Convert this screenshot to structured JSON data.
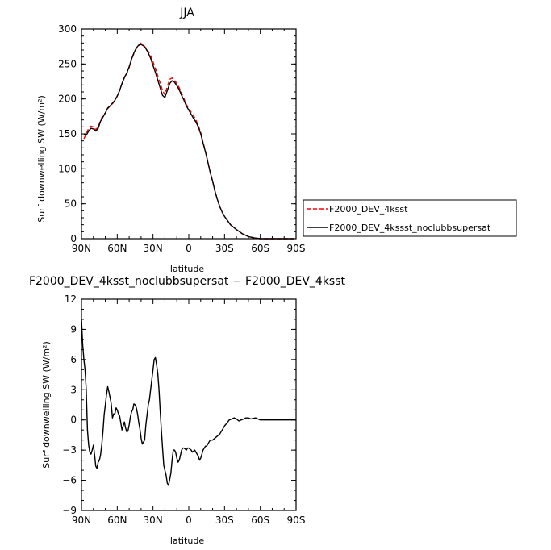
{
  "chart_data": [
    {
      "type": "line",
      "title": "JJA",
      "xlabel": "latitude",
      "ylabel": "Surf downwelling SW (W/m²)",
      "xlim": [
        90,
        -90
      ],
      "ylim": [
        0,
        300
      ],
      "x_ticks": [
        90,
        60,
        30,
        0,
        -30,
        -60,
        -90
      ],
      "x_tick_labels": [
        "90N",
        "60N",
        "30N",
        "0",
        "30S",
        "60S",
        "90S"
      ],
      "y_ticks": [
        0,
        50,
        100,
        150,
        200,
        250,
        300
      ],
      "y_tick_labels": [
        "0",
        "50",
        "100",
        "150",
        "200",
        "250",
        "300"
      ],
      "grid": false,
      "legend_position": "right",
      "series": [
        {
          "name": "F2000_DEV_4ksst",
          "color": "#ff0000",
          "dash": "dashed",
          "x": [
            88,
            86,
            84,
            82,
            80,
            78,
            76,
            74,
            72,
            70,
            68,
            66,
            64,
            62,
            60,
            58,
            56,
            54,
            52,
            50,
            48,
            46,
            44,
            42,
            40,
            38,
            36,
            34,
            32,
            30,
            28,
            26,
            24,
            22,
            20,
            18,
            16,
            14,
            12,
            10,
            8,
            6,
            4,
            2,
            0,
            -2,
            -4,
            -6,
            -8,
            -10,
            -12,
            -14,
            -16,
            -18,
            -20,
            -22,
            -24,
            -26,
            -28,
            -30,
            -35,
            -40,
            -45,
            -50,
            -55,
            -60,
            -65,
            -70,
            -75,
            -80,
            -85,
            -88
          ],
          "y": [
            143,
            150,
            158,
            161,
            160,
            156,
            160,
            170,
            176,
            180,
            186,
            190,
            193,
            198,
            204,
            212,
            222,
            230,
            236,
            245,
            256,
            265,
            272,
            276,
            280,
            277,
            273,
            268,
            262,
            253,
            244,
            233,
            223,
            212,
            206,
            218,
            228,
            230,
            227,
            222,
            216,
            208,
            200,
            192,
            186,
            181,
            176,
            170,
            162,
            152,
            138,
            125,
            110,
            95,
            82,
            68,
            56,
            46,
            38,
            32,
            20,
            13,
            7,
            3,
            1,
            0,
            0,
            0,
            0,
            0,
            0,
            0
          ]
        },
        {
          "name": "F2000_DEV_4kssst_noclubbsupersat",
          "color": "#000000",
          "dash": "solid",
          "x": [
            88,
            86,
            84,
            82,
            80,
            78,
            76,
            74,
            72,
            70,
            68,
            66,
            64,
            62,
            60,
            58,
            56,
            54,
            52,
            50,
            48,
            46,
            44,
            42,
            40,
            38,
            36,
            34,
            32,
            30,
            28,
            26,
            24,
            22,
            20,
            18,
            16,
            14,
            12,
            10,
            8,
            6,
            4,
            2,
            0,
            -2,
            -4,
            -6,
            -8,
            -10,
            -12,
            -14,
            -16,
            -18,
            -20,
            -22,
            -24,
            -26,
            -28,
            -30,
            -35,
            -40,
            -45,
            -50,
            -55,
            -60,
            -65,
            -70,
            -75,
            -80,
            -85,
            -88
          ],
          "y": [
            150,
            148,
            154,
            158,
            157,
            154,
            158,
            168,
            174,
            180,
            187,
            190,
            194,
            198,
            204,
            212,
            222,
            231,
            237,
            246,
            257,
            266,
            273,
            277,
            278,
            276,
            272,
            266,
            258,
            248,
            238,
            227,
            216,
            205,
            202,
            212,
            222,
            226,
            224,
            219,
            213,
            205,
            198,
            190,
            184,
            178,
            172,
            167,
            160,
            150,
            137,
            124,
            110,
            95,
            82,
            68,
            56,
            46,
            38,
            32,
            20,
            13,
            7,
            3,
            1,
            0,
            0,
            0,
            0,
            0,
            0,
            0
          ]
        }
      ]
    },
    {
      "type": "line",
      "title": "F2000_DEV_4ksst_noclubbsupersat − F2000_DEV_4ksst",
      "xlabel": "latitude",
      "ylabel": "Surf downwelling SW (W/m²)",
      "xlim": [
        90,
        -90
      ],
      "ylim": [
        -9,
        12
      ],
      "x_ticks": [
        90,
        60,
        30,
        0,
        -30,
        -60,
        -90
      ],
      "x_tick_labels": [
        "90N",
        "60N",
        "30N",
        "0",
        "30S",
        "60S",
        "90S"
      ],
      "y_ticks": [
        -9,
        -6,
        -3,
        0,
        3,
        6,
        9,
        12
      ],
      "y_tick_labels": [
        "−9",
        "−6",
        "−3",
        "0",
        "3",
        "6",
        "9",
        "12"
      ],
      "grid": false,
      "series": [
        {
          "color": "#000000",
          "dash": "solid",
          "x": [
            90,
            89,
            88,
            87,
            86,
            85,
            84,
            83,
            82,
            81,
            80,
            79,
            78,
            77,
            76,
            75,
            74,
            73,
            72,
            71,
            70,
            69,
            68,
            67,
            66,
            65,
            64,
            63,
            62,
            61,
            60,
            59,
            58,
            57,
            56,
            55,
            54,
            53,
            52,
            51,
            50,
            49,
            48,
            47,
            46,
            45,
            44,
            43,
            42,
            41,
            40,
            39,
            38,
            37,
            36,
            35,
            34,
            33,
            32,
            31,
            30,
            29,
            28,
            27,
            26,
            25,
            24,
            23,
            22,
            21,
            20,
            19,
            18,
            17,
            16,
            15,
            14,
            13,
            12,
            11,
            10,
            9,
            8,
            7,
            6,
            5,
            4,
            3,
            2,
            1,
            0,
            -1,
            -2,
            -3,
            -4,
            -5,
            -6,
            -7,
            -8,
            -9,
            -10,
            -11,
            -12,
            -13,
            -14,
            -15,
            -16,
            -17,
            -18,
            -20,
            -22,
            -24,
            -26,
            -28,
            -30,
            -32,
            -34,
            -36,
            -38,
            -40,
            -42,
            -44,
            -46,
            -48,
            -50,
            -52,
            -54,
            -56,
            -58,
            -60,
            -62,
            -64,
            -66,
            -68,
            -70,
            -75,
            -80,
            -85,
            -90
          ],
          "y": [
            10.0,
            7.5,
            6.0,
            5.0,
            3.0,
            -1.0,
            -2.5,
            -3.2,
            -3.4,
            -3.0,
            -2.5,
            -3.5,
            -4.6,
            -4.8,
            -4.2,
            -4.0,
            -3.5,
            -2.5,
            -1.2,
            0.5,
            1.5,
            2.5,
            3.3,
            2.8,
            2.2,
            1.6,
            0.2,
            0.6,
            0.6,
            1.2,
            1.0,
            0.6,
            0.4,
            -0.3,
            -1.0,
            -0.6,
            -0.2,
            -0.8,
            -1.2,
            -1.1,
            -0.5,
            0.3,
            0.8,
            1.0,
            1.6,
            1.5,
            1.2,
            0.6,
            -0.2,
            -0.9,
            -1.8,
            -2.4,
            -2.2,
            -2.0,
            -0.5,
            0.5,
            1.5,
            2.0,
            3.0,
            4.0,
            5.0,
            6.0,
            6.2,
            5.5,
            4.6,
            3.0,
            1.0,
            -1.0,
            -2.8,
            -4.5,
            -5.0,
            -5.5,
            -6.3,
            -6.5,
            -5.9,
            -5.3,
            -4.0,
            -3.0,
            -3.0,
            -3.2,
            -3.8,
            -4.2,
            -4.0,
            -3.5,
            -3.0,
            -2.8,
            -2.8,
            -2.9,
            -3.0,
            -2.8,
            -2.8,
            -2.9,
            -3.0,
            -3.2,
            -3.1,
            -3.0,
            -3.2,
            -3.4,
            -3.6,
            -4.0,
            -3.8,
            -3.4,
            -3.0,
            -2.8,
            -2.6,
            -2.6,
            -2.4,
            -2.2,
            -2.0,
            -2.0,
            -1.8,
            -1.6,
            -1.4,
            -1.0,
            -0.6,
            -0.3,
            0.0,
            0.1,
            0.2,
            0.1,
            -0.1,
            0.0,
            0.1,
            0.2,
            0.2,
            0.1,
            0.15,
            0.2,
            0.1,
            0.0,
            0.0,
            0.0,
            0.0,
            0.0,
            0.0,
            0.0,
            0.0,
            0.0,
            0.0
          ]
        }
      ]
    }
  ]
}
